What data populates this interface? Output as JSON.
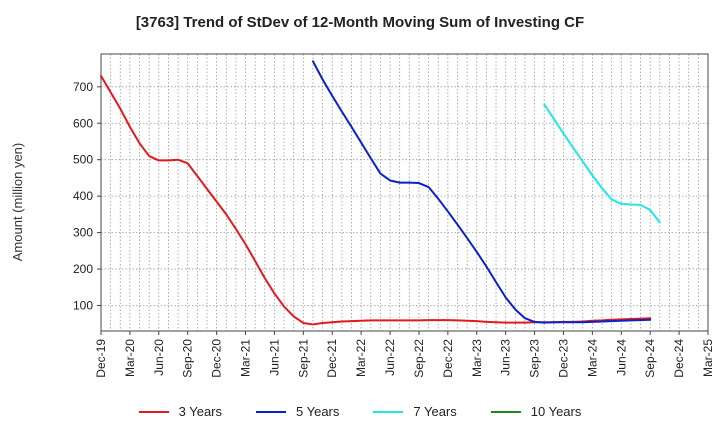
{
  "chart_data": {
    "type": "line",
    "title": "[3763]  Trend of StDev of 12-Month Moving Sum of Investing CF",
    "ylabel": "Amount (million yen)",
    "xlabel": "",
    "ylim": [
      30,
      790
    ],
    "yticks": [
      100,
      200,
      300,
      400,
      500,
      600,
      700
    ],
    "x_tick_labels": [
      "Dec-19",
      "Mar-20",
      "Jun-20",
      "Sep-20",
      "Dec-20",
      "Mar-21",
      "Jun-21",
      "Sep-21",
      "Dec-21",
      "Mar-22",
      "Jun-22",
      "Sep-22",
      "Dec-22",
      "Mar-23",
      "Jun-23",
      "Sep-23",
      "Dec-23",
      "Mar-24",
      "Jun-24",
      "Sep-24",
      "Dec-24",
      "Mar-25"
    ],
    "grid": true,
    "legend_position": "bottom",
    "series": [
      {
        "name": "3 Years",
        "color": "#e31a1c",
        "points": [
          [
            "Dec-19",
            730
          ],
          [
            "Jan-20",
            685
          ],
          [
            "Feb-20",
            640
          ],
          [
            "Mar-20",
            590
          ],
          [
            "Apr-20",
            545
          ],
          [
            "May-20",
            510
          ],
          [
            "Jun-20",
            498
          ],
          [
            "Jul-20",
            498
          ],
          [
            "Aug-20",
            500
          ],
          [
            "Sep-20",
            490
          ],
          [
            "Oct-20",
            455
          ],
          [
            "Nov-20",
            420
          ],
          [
            "Dec-20",
            385
          ],
          [
            "Jan-21",
            350
          ],
          [
            "Feb-21",
            310
          ],
          [
            "Mar-21",
            268
          ],
          [
            "Apr-21",
            222
          ],
          [
            "May-21",
            175
          ],
          [
            "Jun-21",
            133
          ],
          [
            "Jul-21",
            97
          ],
          [
            "Aug-21",
            70
          ],
          [
            "Sep-21",
            52
          ],
          [
            "Oct-21",
            48
          ],
          [
            "Nov-21",
            52
          ],
          [
            "Dec-21",
            54
          ],
          [
            "Jan-22",
            56
          ],
          [
            "Feb-22",
            57
          ],
          [
            "Mar-22",
            58
          ],
          [
            "Apr-22",
            59
          ],
          [
            "May-22",
            59
          ],
          [
            "Jun-22",
            59
          ],
          [
            "Jul-22",
            59
          ],
          [
            "Aug-22",
            59
          ],
          [
            "Sep-22",
            59
          ],
          [
            "Oct-22",
            60
          ],
          [
            "Nov-22",
            60
          ],
          [
            "Dec-22",
            60
          ],
          [
            "Jan-23",
            59
          ],
          [
            "Feb-23",
            58
          ],
          [
            "Mar-23",
            57
          ],
          [
            "Apr-23",
            55
          ],
          [
            "May-23",
            54
          ],
          [
            "Jun-23",
            53
          ],
          [
            "Jul-23",
            53
          ],
          [
            "Aug-23",
            53
          ],
          [
            "Sep-23",
            54
          ],
          [
            "Oct-23",
            54
          ],
          [
            "Nov-23",
            54
          ],
          [
            "Dec-23",
            55
          ],
          [
            "Jan-24",
            55
          ],
          [
            "Feb-24",
            56
          ],
          [
            "Mar-24",
            58
          ],
          [
            "Apr-24",
            59
          ],
          [
            "May-24",
            61
          ],
          [
            "Jun-24",
            62
          ],
          [
            "Jul-24",
            63
          ],
          [
            "Aug-24",
            64
          ],
          [
            "Sep-24",
            65
          ]
        ]
      },
      {
        "name": "5 Years",
        "color": "#0a22c9",
        "points": [
          [
            "Oct-21",
            770
          ],
          [
            "Nov-21",
            720
          ],
          [
            "Dec-21",
            675
          ],
          [
            "Jan-22",
            632
          ],
          [
            "Feb-22",
            590
          ],
          [
            "Mar-22",
            547
          ],
          [
            "Apr-22",
            504
          ],
          [
            "May-22",
            462
          ],
          [
            "Jun-22",
            443
          ],
          [
            "Jul-22",
            437
          ],
          [
            "Aug-22",
            437
          ],
          [
            "Sep-22",
            436
          ],
          [
            "Oct-22",
            425
          ],
          [
            "Nov-22",
            393
          ],
          [
            "Dec-22",
            358
          ],
          [
            "Jan-23",
            322
          ],
          [
            "Feb-23",
            285
          ],
          [
            "Mar-23",
            247
          ],
          [
            "Apr-23",
            207
          ],
          [
            "May-23",
            164
          ],
          [
            "Jun-23",
            122
          ],
          [
            "Jul-23",
            89
          ],
          [
            "Aug-23",
            65
          ],
          [
            "Sep-23",
            55
          ],
          [
            "Oct-23",
            53
          ],
          [
            "Nov-23",
            54
          ],
          [
            "Dec-23",
            54
          ],
          [
            "Jan-24",
            54
          ],
          [
            "Feb-24",
            54
          ],
          [
            "Mar-24",
            55
          ],
          [
            "Apr-24",
            56
          ],
          [
            "May-24",
            57
          ],
          [
            "Jun-24",
            58
          ],
          [
            "Jul-24",
            59
          ],
          [
            "Aug-24",
            60
          ],
          [
            "Sep-24",
            61
          ]
        ]
      },
      {
        "name": "7 Years",
        "color": "#1fe8e8",
        "points": [
          [
            "Oct-23",
            652
          ],
          [
            "Nov-23",
            612
          ],
          [
            "Dec-23",
            572
          ],
          [
            "Jan-24",
            533
          ],
          [
            "Feb-24",
            495
          ],
          [
            "Mar-24",
            457
          ],
          [
            "Apr-24",
            422
          ],
          [
            "May-24",
            391
          ],
          [
            "Jun-24",
            379
          ],
          [
            "Jul-24",
            377
          ],
          [
            "Aug-24",
            376
          ],
          [
            "Sep-24",
            362
          ],
          [
            "Oct-24",
            328
          ]
        ]
      },
      {
        "name": "10 Years",
        "color": "#1a8a1a",
        "points": []
      }
    ]
  }
}
